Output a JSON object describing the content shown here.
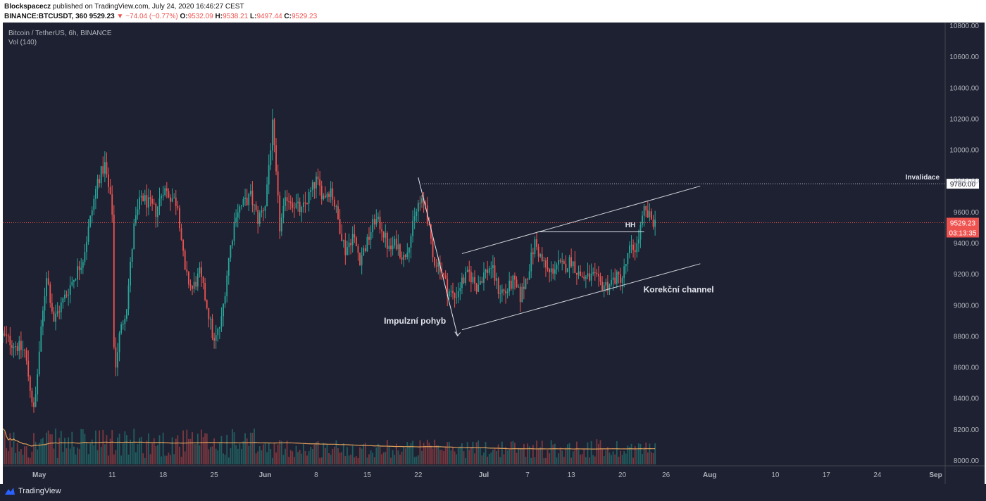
{
  "header": {
    "line1_author": "Blockspacecz",
    "line1_rest": " published on TradingView.com, July 24, 2020 16:46:27 CEST",
    "symbol_text": "BINANCE:BTCUSDT, 360",
    "last": "9529.23",
    "change": "−74.04 (−0.77%)",
    "o_label": "O:",
    "o_value": "9532.09",
    "h_label": "H:",
    "h_value": "9538.21",
    "l_label": "L:",
    "l_value": "9497.44",
    "c_label": "C:",
    "c_value": "9529.23"
  },
  "legend": {
    "title": "Bitcoin / TetherUS, 6h, BINANCE",
    "volume_label": "Vol (140)"
  },
  "footer": {
    "brand": "TradingView"
  },
  "colors": {
    "background": "#1e2131",
    "up": "#26a69a",
    "down": "#ef5350",
    "text": "#b2b5be",
    "ma": "#e0a05a"
  },
  "chart_data": {
    "type": "candlestick",
    "title": "Bitcoin / TetherUS, 6h, BINANCE",
    "ylim": [
      8000,
      10800
    ],
    "y_ticks": [
      "10800.00",
      "10600.00",
      "10400.00",
      "10200.00",
      "10000.00",
      "9800.00",
      "9600.00",
      "9400.00",
      "9200.00",
      "9000.00",
      "8800.00",
      "8600.00",
      "8400.00",
      "8200.00",
      "8000.00"
    ],
    "x_ticks": [
      {
        "label": "May",
        "day": 0
      },
      {
        "label": "11",
        "day": 10
      },
      {
        "label": "18",
        "day": 17
      },
      {
        "label": "25",
        "day": 24
      },
      {
        "label": "Jun",
        "day": 31
      },
      {
        "label": "8",
        "day": 38
      },
      {
        "label": "15",
        "day": 45
      },
      {
        "label": "22",
        "day": 52
      },
      {
        "label": "Jul",
        "day": 61
      },
      {
        "label": "7",
        "day": 67
      },
      {
        "label": "13",
        "day": 73
      },
      {
        "label": "20",
        "day": 80
      },
      {
        "label": "26",
        "day": 86
      },
      {
        "label": "Aug",
        "day": 92
      },
      {
        "label": "10",
        "day": 101
      },
      {
        "label": "17",
        "day": 108
      },
      {
        "label": "24",
        "day": 115
      },
      {
        "label": "Sep",
        "day": 123
      }
    ],
    "xlim_days": [
      -5,
      124.3
    ],
    "last_day": 84.5,
    "price_path": [
      [
        -5,
        8800
      ],
      [
        -2,
        8700
      ],
      [
        -0.7,
        8300
      ],
      [
        0,
        8700
      ],
      [
        1,
        9200
      ],
      [
        2,
        8900
      ],
      [
        4,
        9100
      ],
      [
        6,
        9300
      ],
      [
        8,
        9800
      ],
      [
        9,
        9900
      ],
      [
        10,
        9600
      ],
      [
        10.3,
        8550
      ],
      [
        11,
        8800
      ],
      [
        12,
        9000
      ],
      [
        13,
        9500
      ],
      [
        14,
        9700
      ],
      [
        16,
        9600
      ],
      [
        17,
        9750
      ],
      [
        18,
        9700
      ],
      [
        19,
        9650
      ],
      [
        20,
        9200
      ],
      [
        21,
        9100
      ],
      [
        22,
        9200
      ],
      [
        23,
        9000
      ],
      [
        24,
        8750
      ],
      [
        25,
        8900
      ],
      [
        26,
        9300
      ],
      [
        27,
        9600
      ],
      [
        28,
        9650
      ],
      [
        29,
        9700
      ],
      [
        30,
        9550
      ],
      [
        31,
        9650
      ],
      [
        32,
        10150
      ],
      [
        33,
        9500
      ],
      [
        34,
        9700
      ],
      [
        35,
        9650
      ],
      [
        36,
        9600
      ],
      [
        37,
        9700
      ],
      [
        38,
        9800
      ],
      [
        39,
        9700
      ],
      [
        40,
        9750
      ],
      [
        41,
        9550
      ],
      [
        42,
        9350
      ],
      [
        43,
        9450
      ],
      [
        44,
        9300
      ],
      [
        45,
        9400
      ],
      [
        46,
        9550
      ],
      [
        47,
        9500
      ],
      [
        48,
        9350
      ],
      [
        49,
        9400
      ],
      [
        50,
        9300
      ],
      [
        51,
        9450
      ],
      [
        52,
        9650
      ],
      [
        53,
        9650
      ],
      [
        54,
        9300
      ],
      [
        55,
        9250
      ],
      [
        56,
        9100
      ],
      [
        57,
        9050
      ],
      [
        58,
        9150
      ],
      [
        59,
        9200
      ],
      [
        60,
        9120
      ],
      [
        61,
        9200
      ],
      [
        62,
        9250
      ],
      [
        63,
        9100
      ],
      [
        64,
        9080
      ],
      [
        65,
        9150
      ],
      [
        66,
        9050
      ],
      [
        67,
        9200
      ],
      [
        68,
        9400
      ],
      [
        69,
        9280
      ],
      [
        70,
        9200
      ],
      [
        71,
        9260
      ],
      [
        72,
        9240
      ],
      [
        73,
        9290
      ],
      [
        74,
        9200
      ],
      [
        75,
        9170
      ],
      [
        76,
        9180
      ],
      [
        77,
        9130
      ],
      [
        78,
        9130
      ],
      [
        79,
        9170
      ],
      [
        80,
        9180
      ],
      [
        81,
        9350
      ],
      [
        82,
        9380
      ],
      [
        83,
        9600
      ],
      [
        84,
        9550
      ],
      [
        84.5,
        9529
      ]
    ],
    "reference_lines": [
      {
        "label": "Invalidace",
        "price": 9780.0,
        "value_text": "9780.00"
      },
      {
        "label": "Last",
        "price": 9529.23,
        "value_text": "9529.23",
        "countdown": "03:13:35"
      }
    ],
    "annotations": [
      {
        "text": "Impulzní pohyb"
      },
      {
        "text": "Korekční channel"
      },
      {
        "text": "HH"
      },
      {
        "text": "Invalidace"
      }
    ],
    "volume": {
      "label": "Vol (140)"
    }
  }
}
